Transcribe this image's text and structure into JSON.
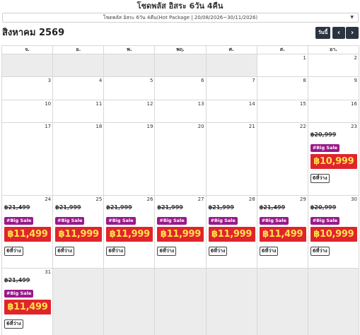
{
  "header": {
    "title": "โชดพลัส อิสระ 6วัน 4คืน",
    "select_value": "โชดพลัส อิสระ 6วัน 4คืน(Hot Package | 20/08/2026~30/11/2026)"
  },
  "calendar": {
    "month_label": "สิงหาคม 2569",
    "today_label": "วันนี้",
    "prev_icon": "‹",
    "next_icon": "›",
    "weekdays": [
      "จ.",
      "อ.",
      "พ.",
      "พฤ.",
      "ศ.",
      "ส.",
      "อา."
    ],
    "weeks": [
      [
        {
          "day": "",
          "other": true
        },
        {
          "day": "",
          "other": true
        },
        {
          "day": "",
          "other": true
        },
        {
          "day": "",
          "other": true
        },
        {
          "day": "",
          "other": true
        },
        {
          "day": "1"
        },
        {
          "day": "2"
        }
      ],
      [
        {
          "day": "3"
        },
        {
          "day": "4"
        },
        {
          "day": "5"
        },
        {
          "day": "6"
        },
        {
          "day": "7"
        },
        {
          "day": "8"
        },
        {
          "day": "9"
        }
      ],
      [
        {
          "day": "10"
        },
        {
          "day": "11"
        },
        {
          "day": "12"
        },
        {
          "day": "13"
        },
        {
          "day": "14"
        },
        {
          "day": "15"
        },
        {
          "day": "16"
        }
      ],
      [
        {
          "day": "17"
        },
        {
          "day": "18"
        },
        {
          "day": "19"
        },
        {
          "day": "20"
        },
        {
          "day": "21"
        },
        {
          "day": "22"
        },
        {
          "day": "23",
          "deal": {
            "old_price": "฿20,999",
            "tag": "#Big Sale",
            "price": "฿10,999",
            "seats": "6ที่ว่าง"
          }
        }
      ],
      [
        {
          "day": "24",
          "deal": {
            "old_price": "฿21,499",
            "tag": "#Big Sale",
            "price": "฿11,499",
            "seats": "6ที่ว่าง"
          }
        },
        {
          "day": "25",
          "deal": {
            "old_price": "฿21,999",
            "tag": "#Big Sale",
            "price": "฿11,999",
            "seats": "6ที่ว่าง"
          }
        },
        {
          "day": "26",
          "deal": {
            "old_price": "฿21,999",
            "tag": "#Big Sale",
            "price": "฿11,999",
            "seats": "6ที่ว่าง"
          }
        },
        {
          "day": "27",
          "deal": {
            "old_price": "฿21,999",
            "tag": "#Big Sale",
            "price": "฿11,999",
            "seats": "6ที่ว่าง"
          }
        },
        {
          "day": "28",
          "deal": {
            "old_price": "฿21,999",
            "tag": "#Big Sale",
            "price": "฿11,999",
            "seats": "6ที่ว่าง"
          }
        },
        {
          "day": "29",
          "deal": {
            "old_price": "฿21,499",
            "tag": "#Big Sale",
            "price": "฿11,499",
            "seats": "6ที่ว่าง"
          }
        },
        {
          "day": "30",
          "deal": {
            "old_price": "฿20,999",
            "tag": "#Big Sale",
            "price": "฿10,999",
            "seats": "6ที่ว่าง"
          }
        }
      ],
      [
        {
          "day": "31",
          "deal": {
            "old_price": "฿21,499",
            "tag": "#Big Sale",
            "price": "฿11,499",
            "seats": "6ที่ว่าง"
          }
        },
        {
          "day": "",
          "other": true
        },
        {
          "day": "",
          "other": true
        },
        {
          "day": "",
          "other": true
        },
        {
          "day": "",
          "other": true
        },
        {
          "day": "",
          "other": true
        },
        {
          "day": "",
          "other": true
        }
      ]
    ]
  },
  "colors": {
    "price_bg": "#e0242c",
    "price_text": "#ffe14a",
    "tag_bg": "#9a1a8a",
    "button_bg": "#2b3440"
  }
}
